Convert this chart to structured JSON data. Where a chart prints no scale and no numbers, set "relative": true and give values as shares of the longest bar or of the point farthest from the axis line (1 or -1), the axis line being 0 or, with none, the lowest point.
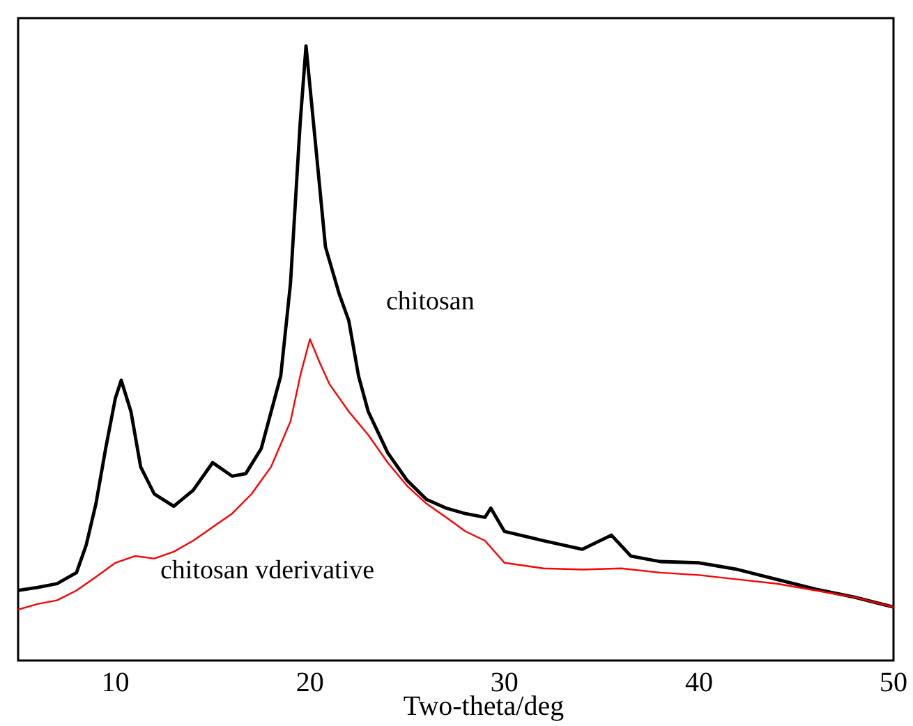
{
  "chart_data": {
    "type": "line",
    "relative": true,
    "xlabel": "Two-theta/deg",
    "xlim": [
      5,
      50
    ],
    "xticks": [
      10,
      20,
      30,
      40,
      50
    ],
    "tick_labels": "x",
    "grid": false,
    "line_style": "solid",
    "series": [
      {
        "name": "chitosan",
        "color": "#000000",
        "x": [
          5,
          6,
          7,
          8,
          8.5,
          9,
          9.5,
          10,
          10.3,
          10.8,
          11.3,
          12,
          13,
          14,
          15,
          16,
          16.7,
          17.5,
          18.5,
          19,
          19.5,
          19.8,
          20.3,
          20.8,
          21.5,
          22,
          22.5,
          23,
          24,
          25,
          26,
          27,
          28,
          29,
          29.3,
          30,
          32,
          34,
          35.5,
          36.5,
          38,
          40,
          42,
          44,
          46,
          48,
          50
        ],
        "values": [
          0.114,
          0.119,
          0.125,
          0.143,
          0.188,
          0.255,
          0.345,
          0.427,
          0.456,
          0.405,
          0.315,
          0.271,
          0.251,
          0.277,
          0.322,
          0.3,
          0.304,
          0.345,
          0.463,
          0.613,
          0.875,
          1,
          0.837,
          0.673,
          0.597,
          0.553,
          0.463,
          0.405,
          0.338,
          0.293,
          0.262,
          0.248,
          0.239,
          0.233,
          0.248,
          0.21,
          0.195,
          0.181,
          0.204,
          0.17,
          0.161,
          0.159,
          0.148,
          0.132,
          0.116,
          0.103,
          0.087
        ]
      },
      {
        "name": "chitosan vderivative",
        "color": "#ff0000",
        "x": [
          5,
          6,
          7,
          8,
          9,
          10,
          11,
          12,
          13,
          14,
          15,
          16,
          17,
          18,
          19,
          19.5,
          20,
          20.5,
          21,
          22,
          23,
          24,
          25,
          26,
          27,
          28,
          29,
          30,
          32,
          34,
          36,
          38,
          40,
          42,
          44,
          46,
          48,
          50
        ],
        "values": [
          0.083,
          0.092,
          0.098,
          0.114,
          0.136,
          0.159,
          0.17,
          0.166,
          0.177,
          0.195,
          0.217,
          0.239,
          0.271,
          0.315,
          0.389,
          0.463,
          0.523,
          0.485,
          0.45,
          0.405,
          0.367,
          0.322,
          0.284,
          0.255,
          0.233,
          0.21,
          0.195,
          0.159,
          0.15,
          0.148,
          0.15,
          0.143,
          0.139,
          0.132,
          0.125,
          0.114,
          0.103,
          0.087
        ]
      }
    ]
  }
}
